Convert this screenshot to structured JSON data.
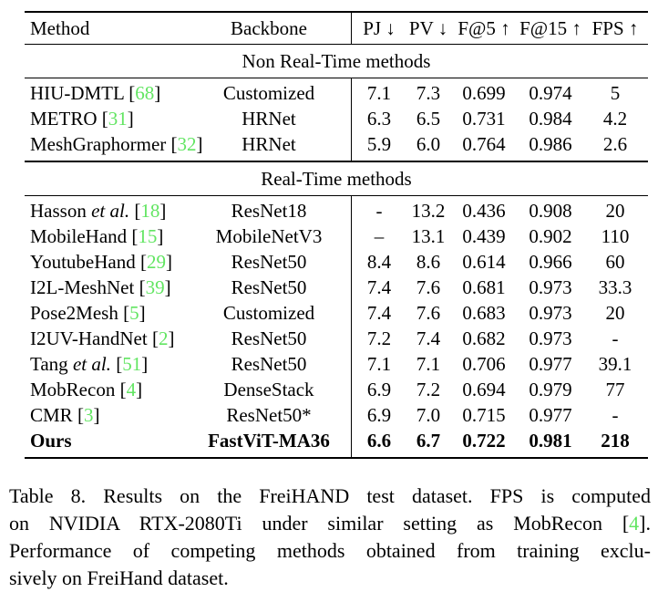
{
  "colors": {
    "citation_green": "#62e562",
    "text_black": "#000000",
    "background": "#ffffff"
  },
  "table": {
    "header": {
      "method": "Method",
      "backbone": "Backbone",
      "pj": "PJ ↓",
      "pv": "PV ↓",
      "f5": "F@5 ↑",
      "f15": "F@15 ↑",
      "fps": "FPS ↑"
    },
    "sections": [
      {
        "title": "Non Real-Time methods",
        "rows": [
          {
            "m": "HIU-DMTL ",
            "it": "",
            "bo": "[",
            "cite": "68",
            "bc": "]",
            "backbone": "Customized",
            "pj": "7.1",
            "pv": "7.3",
            "f5": "0.699",
            "f15": "0.974",
            "fps": "5"
          },
          {
            "m": "METRO ",
            "it": "",
            "bo": "[",
            "cite": "31",
            "bc": "]",
            "backbone": "HRNet",
            "pj": "6.3",
            "pv": "6.5",
            "f5": "0.731",
            "f15": "0.984",
            "fps": "4.2"
          },
          {
            "m": "MeshGraphormer ",
            "it": "",
            "bo": "[",
            "cite": "32",
            "bc": "]",
            "backbone": "HRNet",
            "pj": "5.9",
            "pv": "6.0",
            "f5": "0.764",
            "f15": "0.986",
            "fps": "2.6"
          }
        ]
      },
      {
        "title": "Real-Time methods",
        "rows": [
          {
            "m": "Hasson ",
            "it": "et al. ",
            "bo": "[",
            "cite": "18",
            "bc": "]",
            "backbone": "ResNet18",
            "pj": "-",
            "pv": "13.2",
            "f5": "0.436",
            "f15": "0.908",
            "fps": "20"
          },
          {
            "m": "MobileHand ",
            "it": "",
            "bo": "[",
            "cite": "15",
            "bc": "]",
            "backbone": "MobileNetV3",
            "pj": "–",
            "pv": "13.1",
            "f5": "0.439",
            "f15": "0.902",
            "fps": "110"
          },
          {
            "m": "YoutubeHand ",
            "it": "",
            "bo": "[",
            "cite": "29",
            "bc": "]",
            "backbone": "ResNet50",
            "pj": "8.4",
            "pv": "8.6",
            "f5": "0.614",
            "f15": "0.966",
            "fps": "60"
          },
          {
            "m": "I2L-MeshNet ",
            "it": "",
            "bo": "[",
            "cite": "39",
            "bc": "]",
            "backbone": "ResNet50",
            "pj": "7.4",
            "pv": "7.6",
            "f5": "0.681",
            "f15": "0.973",
            "fps": "33.3"
          },
          {
            "m": "Pose2Mesh ",
            "it": "",
            "bo": "[",
            "cite": "5",
            "bc": "]",
            "backbone": "Customized",
            "pj": "7.4",
            "pv": "7.6",
            "f5": "0.683",
            "f15": "0.973",
            "fps": "20"
          },
          {
            "m": "I2UV-HandNet ",
            "it": "",
            "bo": "[",
            "cite": "2",
            "bc": "]",
            "backbone": "ResNet50",
            "pj": "7.2",
            "pv": "7.4",
            "f5": "0.682",
            "f15": "0.973",
            "fps": "-"
          },
          {
            "m": "Tang ",
            "it": "et al. ",
            "bo": "[",
            "cite": "51",
            "bc": "]",
            "backbone": "ResNet50",
            "pj": "7.1",
            "pv": "7.1",
            "f5": "0.706",
            "f15": "0.977",
            "fps": "39.1"
          },
          {
            "m": "MobRecon ",
            "it": "",
            "bo": "[",
            "cite": "4",
            "bc": "]",
            "backbone": "DenseStack",
            "pj": "6.9",
            "pv": "7.2",
            "f5": "0.694",
            "f15": "0.979",
            "fps": "77"
          },
          {
            "m": "CMR ",
            "it": "",
            "bo": "[",
            "cite": "3",
            "bc": "]",
            "backbone": "ResNet50*",
            "pj": "6.9",
            "pv": "7.0",
            "f5": "0.715",
            "f15": "0.977",
            "fps": "-"
          },
          {
            "m": "Ours",
            "it": "",
            "bo": "",
            "cite": "",
            "bc": "",
            "backbone": "FastViT-MA36",
            "pj": "6.6",
            "pv": "6.7",
            "f5": "0.722",
            "f15": "0.981",
            "fps": "218"
          }
        ]
      }
    ]
  },
  "caption": {
    "line1": "Table 8. Results on the FreiHAND test dataset. FPS is computed",
    "line2_pre": "on NVIDIA RTX-2080Ti under similar setting as MobRecon [",
    "line2_cite": "4",
    "line2_post": "].",
    "line3": "Performance of competing methods obtained from training exclu-",
    "line4": "sively on FreiHand dataset."
  }
}
